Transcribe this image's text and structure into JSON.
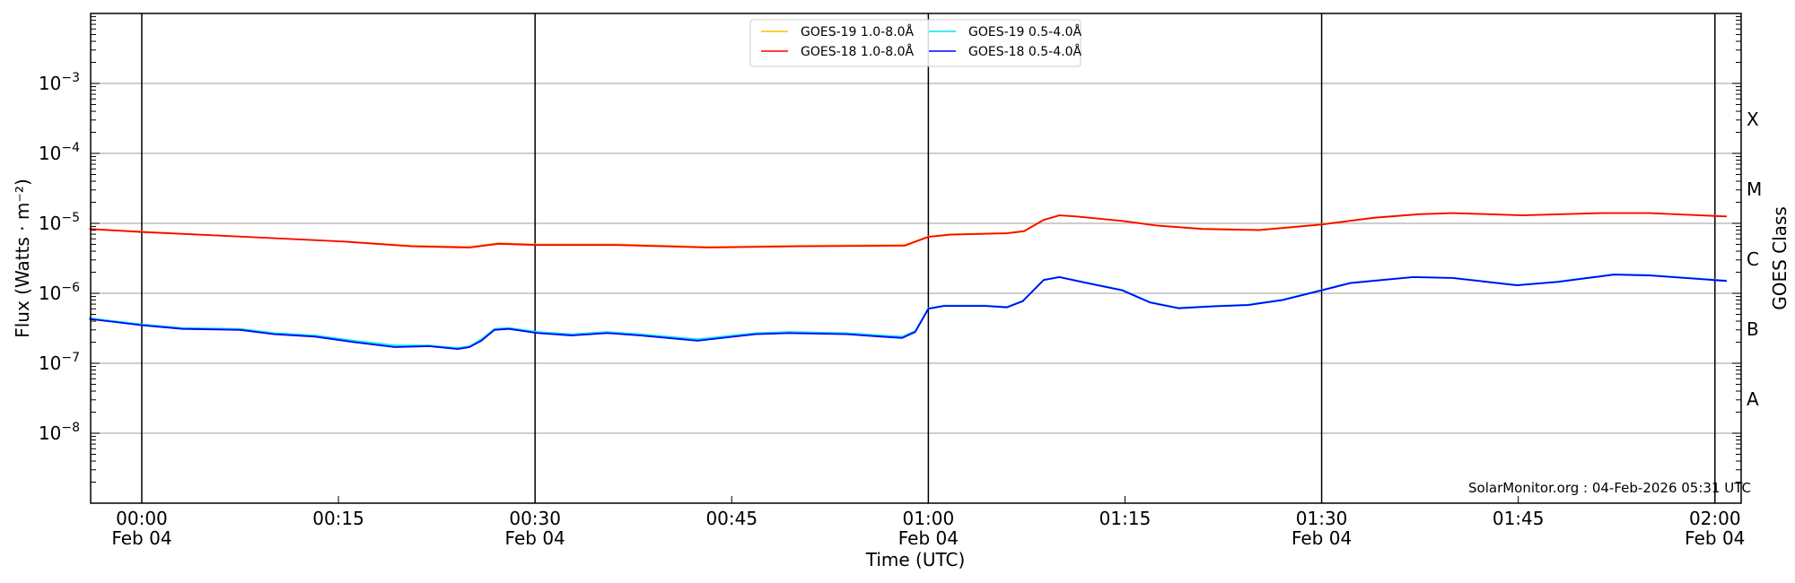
{
  "chart_data": {
    "type": "line",
    "title": "",
    "xlabel": "Time (UTC)",
    "ylabel": "Flux (Watts · m⁻²)",
    "ylabel_right": "GOES Class",
    "yscale": "log",
    "ylim": [
      1e-09,
      0.01
    ],
    "xlim_minutes": [
      -3.9,
      122
    ],
    "y_ticks": [
      {
        "value": 0.001,
        "base": "10",
        "exp": "−3"
      },
      {
        "value": 0.0001,
        "base": "10",
        "exp": "−4"
      },
      {
        "value": 1e-05,
        "base": "10",
        "exp": "−5"
      },
      {
        "value": 1e-06,
        "base": "10",
        "exp": "−6"
      },
      {
        "value": 1e-07,
        "base": "10",
        "exp": "−7"
      },
      {
        "value": 1e-08,
        "base": "10",
        "exp": "−8"
      }
    ],
    "class_labels": [
      {
        "label": "X",
        "value": 0.000316
      },
      {
        "label": "M",
        "value": 3.16e-05
      },
      {
        "label": "C",
        "value": 3.16e-06
      },
      {
        "label": "B",
        "value": 3.16e-07
      },
      {
        "label": "A",
        "value": 3.16e-08
      }
    ],
    "x_ticks": [
      {
        "minutes": 0,
        "time": "00:00",
        "date": "Feb 04",
        "major": true
      },
      {
        "minutes": 15,
        "time": "00:15",
        "date": "",
        "major": false
      },
      {
        "minutes": 30,
        "time": "00:30",
        "date": "Feb 04",
        "major": true
      },
      {
        "minutes": 45,
        "time": "00:45",
        "date": "",
        "major": false
      },
      {
        "minutes": 60,
        "time": "01:00",
        "date": "Feb 04",
        "major": true
      },
      {
        "minutes": 75,
        "time": "01:15",
        "date": "",
        "major": false
      },
      {
        "minutes": 90,
        "time": "01:30",
        "date": "Feb 04",
        "major": true
      },
      {
        "minutes": 105,
        "time": "01:45",
        "date": "",
        "major": false
      },
      {
        "minutes": 120,
        "time": "02:00",
        "date": "Feb 04",
        "major": true
      }
    ],
    "grid": "horizontal",
    "legend_position": "top-center",
    "series": [
      {
        "name": "GOES-19 1.0-8.0Å",
        "color": "#ffc000",
        "x": [
          -4,
          0,
          6.6,
          15.4,
          20.6,
          25,
          27.2,
          30.2,
          36.3,
          43.3,
          50.3,
          58.2,
          60,
          61.7,
          66,
          67.3,
          68.8,
          70,
          71.3,
          74.8,
          77.4,
          80.9,
          85.2,
          90,
          94,
          97.5,
          100,
          105.3,
          111.4,
          115,
          120.9
        ],
        "y": [
          8.3e-06,
          7.6e-06,
          6.6e-06,
          5.5e-06,
          4.8e-06,
          4.6e-06,
          5.2e-06,
          5e-06,
          5e-06,
          4.6e-06,
          4.8e-06,
          4.9e-06,
          6.5e-06,
          7e-06,
          7.3e-06,
          7.8e-06,
          1.13e-05,
          1.31e-05,
          1.26e-05,
          1.09e-05,
          9.4e-06,
          8.4e-06,
          8.1e-06,
          9.7e-06,
          1.21e-05,
          1.36e-05,
          1.41e-05,
          1.31e-05,
          1.41e-05,
          1.41e-05,
          1.26e-05
        ]
      },
      {
        "name": "GOES-19 0.5-4.0Å",
        "color": "#00e5ee",
        "x": [
          -4,
          0,
          3.1,
          7.5,
          10.1,
          13.2,
          16.2,
          19.3,
          21.9,
          24.1,
          25,
          25.9,
          26.9,
          28,
          30.2,
          32.8,
          35.5,
          38,
          42.4,
          46.8,
          49.4,
          53.8,
          56.4,
          58,
          59,
          60,
          61.2,
          64.3,
          66,
          67.2,
          68.8,
          70,
          72.1,
          74.8,
          76.9,
          79.1,
          81.7,
          84.4,
          87,
          90,
          92.2,
          97,
          100,
          104.9,
          108,
          112.3,
          115,
          120.9
        ],
        "y": [
          4.4e-07,
          3.6e-07,
          3.2e-07,
          3.1e-07,
          2.7e-07,
          2.5e-07,
          2.1e-07,
          1.8e-07,
          1.8e-07,
          1.65e-07,
          1.75e-07,
          2.2e-07,
          3.1e-07,
          3.2e-07,
          2.8e-07,
          2.6e-07,
          2.8e-07,
          2.6e-07,
          2.2e-07,
          2.7e-07,
          2.8e-07,
          2.7e-07,
          2.5e-07,
          2.4e-07,
          2.9e-07,
          6.1e-07,
          6.7e-07,
          6.7e-07,
          6.4e-07,
          7.8e-07,
          1.57e-06,
          1.72e-06,
          1.42e-06,
          1.12e-06,
          7.5e-07,
          6.2e-07,
          6.6e-07,
          6.9e-07,
          8.1e-07,
          1.12e-06,
          1.42e-06,
          1.72e-06,
          1.67e-06,
          1.32e-06,
          1.47e-06,
          1.87e-06,
          1.82e-06,
          1.52e-06
        ]
      },
      {
        "name": "GOES-18 1.0-8.0Å",
        "color": "#ff0000",
        "x": [
          -4,
          0,
          6.6,
          15.4,
          20.6,
          25,
          27.2,
          30.2,
          36.3,
          43.3,
          50.3,
          58.2,
          60,
          61.7,
          66,
          67.3,
          68.8,
          70,
          71.3,
          74.8,
          77.4,
          80.9,
          85.2,
          90,
          94,
          97.5,
          100,
          105.3,
          111.4,
          115,
          120.9
        ],
        "y": [
          8.3e-06,
          7.5e-06,
          6.6e-06,
          5.5e-06,
          4.7e-06,
          4.5e-06,
          5.1e-06,
          4.9e-06,
          4.9e-06,
          4.5e-06,
          4.7e-06,
          4.8e-06,
          6.4e-06,
          6.9e-06,
          7.2e-06,
          7.7e-06,
          1.12e-05,
          1.3e-05,
          1.25e-05,
          1.08e-05,
          9.3e-06,
          8.3e-06,
          8e-06,
          9.6e-06,
          1.2e-05,
          1.35e-05,
          1.4e-05,
          1.3e-05,
          1.4e-05,
          1.4e-05,
          1.25e-05
        ]
      },
      {
        "name": "GOES-18 0.5-4.0Å",
        "color": "#0000ff",
        "x": [
          -4,
          0,
          3.1,
          7.5,
          10.1,
          13.2,
          16.2,
          19.3,
          21.9,
          24.1,
          25,
          25.9,
          26.9,
          28,
          30.2,
          32.8,
          35.5,
          38,
          42.4,
          46.8,
          49.4,
          53.8,
          56.4,
          58,
          59,
          60,
          61.2,
          64.3,
          66,
          67.2,
          68.8,
          70,
          72.1,
          74.8,
          76.9,
          79.1,
          81.7,
          84.4,
          87,
          90,
          92.2,
          97,
          100,
          104.9,
          108,
          112.3,
          115,
          120.9
        ],
        "y": [
          4.3e-07,
          3.5e-07,
          3.1e-07,
          3e-07,
          2.6e-07,
          2.4e-07,
          2e-07,
          1.7e-07,
          1.75e-07,
          1.6e-07,
          1.7e-07,
          2.1e-07,
          3e-07,
          3.1e-07,
          2.7e-07,
          2.5e-07,
          2.7e-07,
          2.5e-07,
          2.1e-07,
          2.6e-07,
          2.7e-07,
          2.6e-07,
          2.4e-07,
          2.3e-07,
          2.8e-07,
          6e-07,
          6.6e-07,
          6.6e-07,
          6.3e-07,
          7.7e-07,
          1.55e-06,
          1.7e-06,
          1.4e-06,
          1.1e-06,
          7.4e-07,
          6.1e-07,
          6.5e-07,
          6.8e-07,
          8e-07,
          1.1e-06,
          1.4e-06,
          1.7e-06,
          1.65e-06,
          1.3e-06,
          1.45e-06,
          1.85e-06,
          1.8e-06,
          1.5e-06
        ]
      }
    ],
    "annotation": "SolarMonitor.org : 04-Feb-2026 05:31 UTC"
  }
}
